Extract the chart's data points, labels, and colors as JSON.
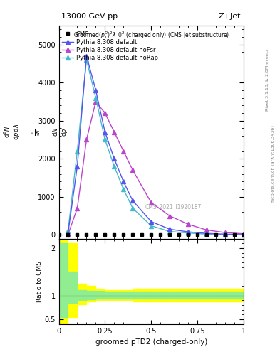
{
  "title_top": "13000 GeV pp",
  "title_top_right": "Z+Jet",
  "watermark": "CMS_2021_I1920187",
  "right_label1": "Rivet 3.1.10, ≥ 2.8M events",
  "right_label2": "mcplots.cern.ch [arXiv:1306.3436]",
  "xlabel": "groomed pTD2 (charged-only)",
  "ylabel_ratio": "Ratio to CMS",
  "cms_data_x": [
    0.0,
    0.05,
    0.1,
    0.15,
    0.2,
    0.25,
    0.3,
    0.35,
    0.4,
    0.45,
    0.5,
    0.55,
    0.6,
    0.65,
    0.7,
    0.75,
    0.8,
    0.85,
    0.9,
    0.95,
    1.0
  ],
  "cms_data_y": [
    0,
    0,
    0,
    0,
    0,
    0,
    0,
    0,
    0,
    0,
    0,
    0,
    0,
    0,
    0,
    0,
    0,
    0,
    0,
    0,
    0
  ],
  "pythia_default_x": [
    0.05,
    0.1,
    0.15,
    0.2,
    0.25,
    0.3,
    0.35,
    0.4,
    0.5,
    0.6,
    0.7,
    0.8,
    0.9,
    1.0
  ],
  "pythia_default_y": [
    50,
    1800,
    4700,
    3800,
    2700,
    2000,
    1400,
    900,
    350,
    150,
    80,
    40,
    20,
    5
  ],
  "pythia_nofsr_x": [
    0.05,
    0.1,
    0.15,
    0.2,
    0.25,
    0.3,
    0.35,
    0.4,
    0.5,
    0.6,
    0.7,
    0.8,
    0.9,
    1.0
  ],
  "pythia_nofsr_y": [
    10,
    700,
    2500,
    3500,
    3200,
    2700,
    2200,
    1700,
    850,
    500,
    280,
    130,
    60,
    30
  ],
  "pythia_norap_x": [
    0.05,
    0.1,
    0.15,
    0.2,
    0.25,
    0.3,
    0.35,
    0.4,
    0.5,
    0.6,
    0.7,
    0.8,
    0.9,
    1.0
  ],
  "pythia_norap_y": [
    100,
    2200,
    4600,
    3600,
    2500,
    1800,
    1200,
    700,
    240,
    90,
    50,
    20,
    10,
    3
  ],
  "color_default": "#5555ee",
  "color_nofsr": "#bb44cc",
  "color_norap": "#44bbcc",
  "color_cms": "black",
  "ylim_main": [
    -100,
    5500
  ],
  "ylim_ratio": [
    0.4,
    2.2
  ],
  "xlim": [
    0.0,
    1.0
  ],
  "yticks_main": [
    0,
    1000,
    2000,
    3000,
    4000,
    5000
  ],
  "ytick_labels_main": [
    "0",
    "1000",
    "2000",
    "3000",
    "4000",
    "5000"
  ],
  "ratio_x_edges": [
    0.0,
    0.05,
    0.1,
    0.15,
    0.2,
    0.25,
    0.3,
    0.35,
    0.4,
    0.45,
    0.5,
    0.55,
    0.6,
    0.65,
    0.7,
    0.75,
    0.8,
    0.85,
    0.9,
    0.95,
    1.0
  ],
  "ratio_green_lo": [
    0.55,
    0.85,
    0.9,
    0.92,
    0.93,
    0.93,
    0.94,
    0.94,
    0.94,
    0.94,
    0.94,
    0.94,
    0.94,
    0.94,
    0.94,
    0.94,
    0.94,
    0.94,
    0.94,
    0.94
  ],
  "ratio_green_hi": [
    2.1,
    1.5,
    1.12,
    1.1,
    1.08,
    1.07,
    1.07,
    1.07,
    1.07,
    1.07,
    1.07,
    1.07,
    1.07,
    1.07,
    1.07,
    1.07,
    1.07,
    1.07,
    1.07,
    1.07
  ],
  "ratio_yellow_lo": [
    0.35,
    0.55,
    0.82,
    0.87,
    0.9,
    0.9,
    0.91,
    0.91,
    0.88,
    0.88,
    0.88,
    0.88,
    0.88,
    0.88,
    0.88,
    0.88,
    0.88,
    0.88,
    0.88,
    0.88
  ],
  "ratio_yellow_hi": [
    2.35,
    2.1,
    1.25,
    1.2,
    1.15,
    1.12,
    1.12,
    1.12,
    1.15,
    1.15,
    1.15,
    1.15,
    1.15,
    1.15,
    1.15,
    1.15,
    1.15,
    1.15,
    1.15,
    1.15
  ]
}
